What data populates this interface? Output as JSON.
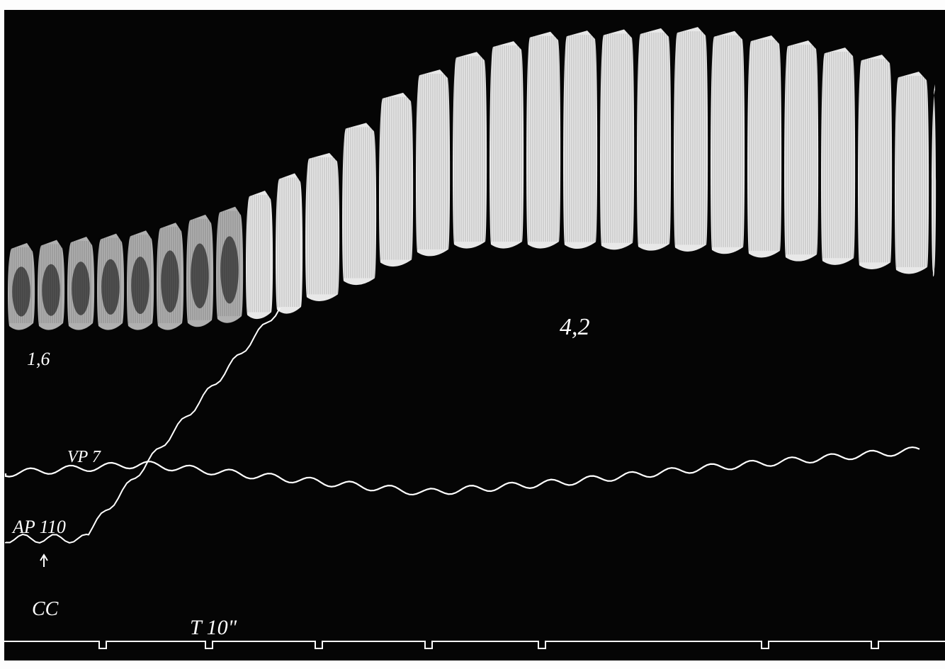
{
  "labels": {
    "pulse_before": "1,6",
    "pulse_after": "4,2",
    "venous_pressure": "VP 7",
    "arterial_pressure": "AP 110",
    "stimulus": "CC",
    "time_marker": "T 10\""
  }
}
